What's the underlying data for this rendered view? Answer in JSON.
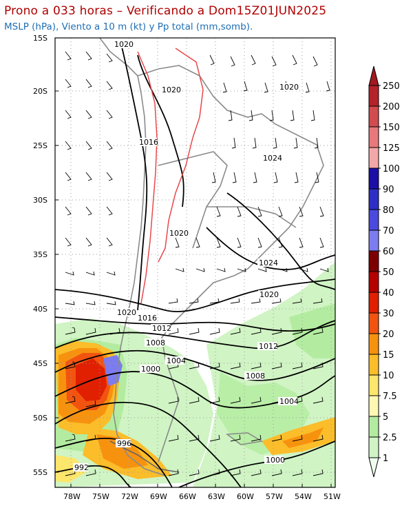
{
  "header": {
    "title": "Prono a 033 horas – Verificando a Dom15Z01JUN2025",
    "subtitle": "MSLP (hPa), Viento a 10 m (kt) y Pp total (mm,somb)."
  },
  "axes": {
    "lat_labels": [
      "15S",
      "20S",
      "25S",
      "30S",
      "35S",
      "40S",
      "45S",
      "50S",
      "55S"
    ],
    "lon_labels": [
      "78W",
      "75W",
      "72W",
      "69W",
      "66W",
      "63W",
      "60W",
      "57W",
      "54W",
      "51W"
    ]
  },
  "isobars": {
    "labels": [
      "1020",
      "1020",
      "1020",
      "1016",
      "1024",
      "1020",
      "1024",
      "1020",
      "1020",
      "1016",
      "1012",
      "1012",
      "1008",
      "1004",
      "1000",
      "1008",
      "1004",
      "996",
      "992",
      "1000"
    ]
  },
  "colorbar": {
    "labels": [
      "250",
      "200",
      "150",
      "125",
      "100",
      "90",
      "80",
      "70",
      "60",
      "50",
      "40",
      "30",
      "20",
      "15",
      "10",
      "7.5",
      "5",
      "2.5",
      "1"
    ],
    "colors": [
      "#b4232a",
      "#d14b4f",
      "#e8797b",
      "#f4a7a8",
      "#1c0fa8",
      "#2e2ec6",
      "#4a4ade",
      "#7c7cf0",
      "#7d0000",
      "#b50000",
      "#e02000",
      "#f25410",
      "#f7920f",
      "#fbbd2a",
      "#fde66c",
      "#fff8b3",
      "#b3eca0",
      "#d0f4c4",
      "#f0fcee"
    ]
  }
}
